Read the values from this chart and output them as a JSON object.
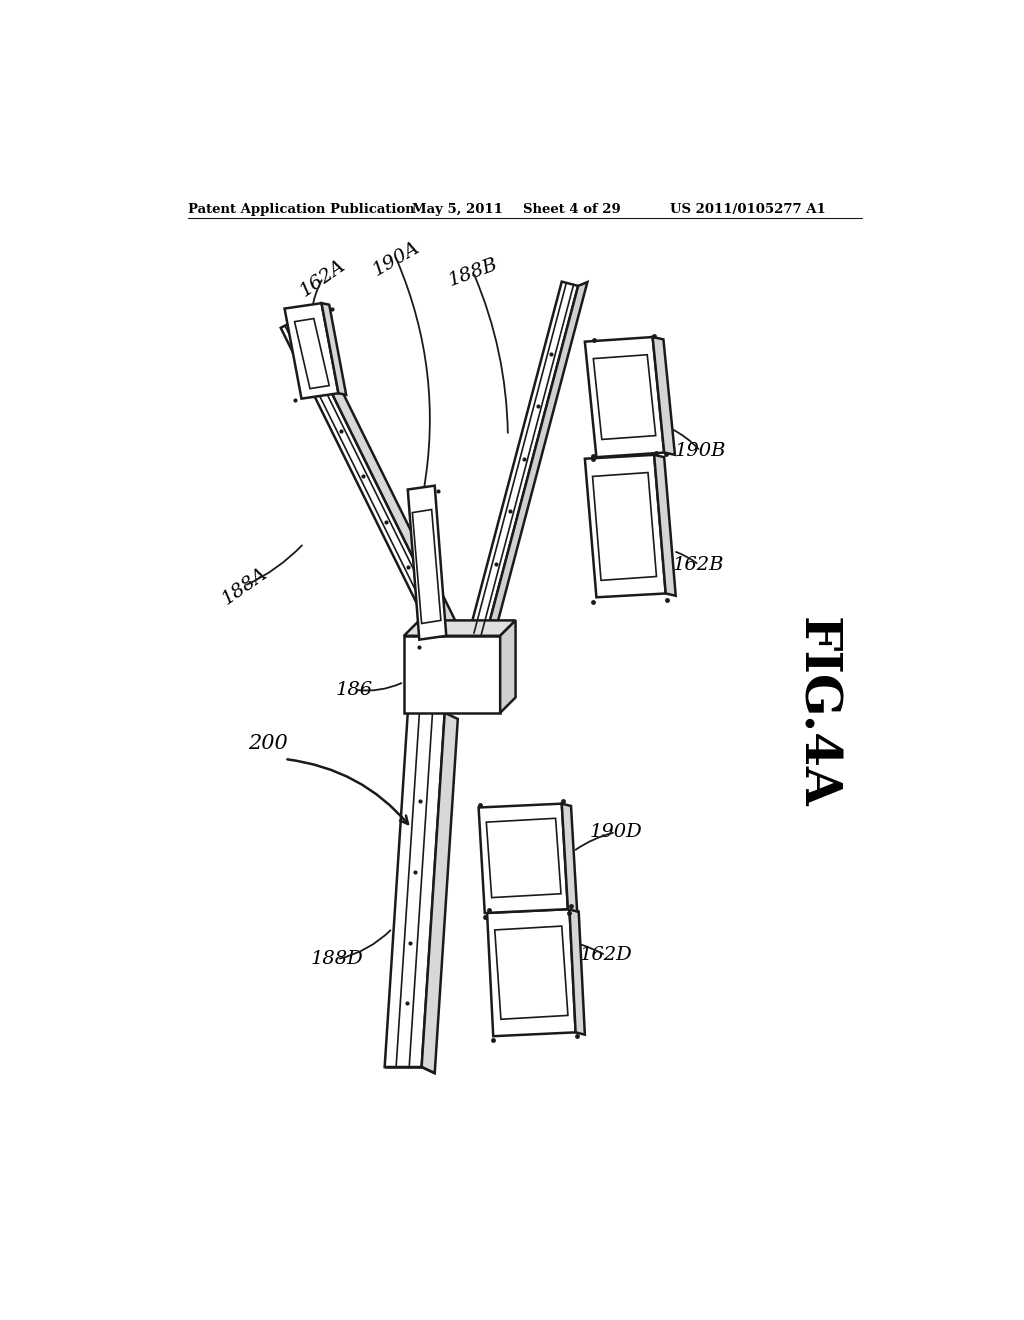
{
  "background_color": "#ffffff",
  "header_text": "Patent Application Publication",
  "header_date": "May 5, 2011",
  "header_sheet": "Sheet 4 of 29",
  "header_patent": "US 2011/0105277 A1",
  "figure_label": "FIG.4A",
  "line_color": "#1a1a1a",
  "line_width": 1.8
}
